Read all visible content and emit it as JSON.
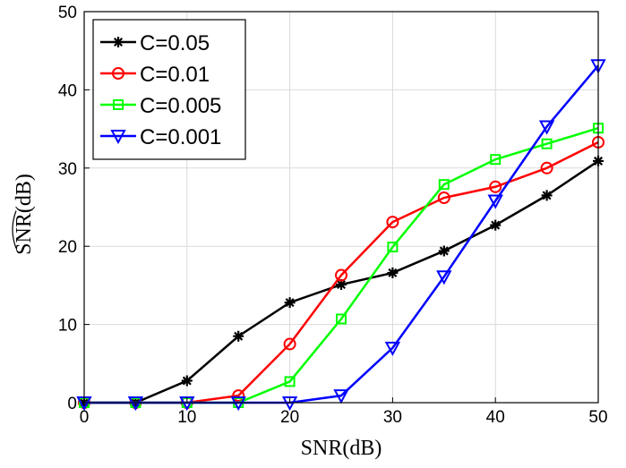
{
  "chart_data": {
    "type": "line",
    "x": [
      0,
      5,
      10,
      15,
      20,
      25,
      30,
      35,
      40,
      45,
      50
    ],
    "xticks": [
      0,
      10,
      20,
      30,
      40,
      50
    ],
    "yticks": [
      0,
      10,
      20,
      30,
      40,
      50
    ],
    "xlim": [
      0,
      50
    ],
    "ylim": [
      0,
      50
    ],
    "grid": true,
    "legend_position": "top-left",
    "xlabel": "SNR(dB)",
    "ylabel": "SNR(dB)",
    "series": [
      {
        "name": "C=0.05",
        "color": "#000000",
        "marker": "asterisk",
        "values": [
          0,
          0,
          2.8,
          8.5,
          12.8,
          15.1,
          16.6,
          19.4,
          22.7,
          26.5,
          30.9
        ]
      },
      {
        "name": "C=0.01",
        "color": "#ff0000",
        "marker": "circle",
        "values": [
          0,
          0,
          0,
          0.9,
          7.5,
          16.3,
          23.1,
          26.2,
          27.6,
          30.0,
          33.3
        ]
      },
      {
        "name": "C=0.005",
        "color": "#00ff00",
        "marker": "square",
        "values": [
          0,
          0,
          0,
          0,
          2.7,
          10.7,
          19.9,
          27.9,
          31.1,
          33.1,
          35.1
        ]
      },
      {
        "name": "C=0.001",
        "color": "#0000ff",
        "marker": "triangle-down",
        "values": [
          0,
          0,
          0,
          0,
          0,
          0.9,
          7.0,
          16.1,
          25.8,
          35.3,
          43.1
        ]
      }
    ]
  }
}
